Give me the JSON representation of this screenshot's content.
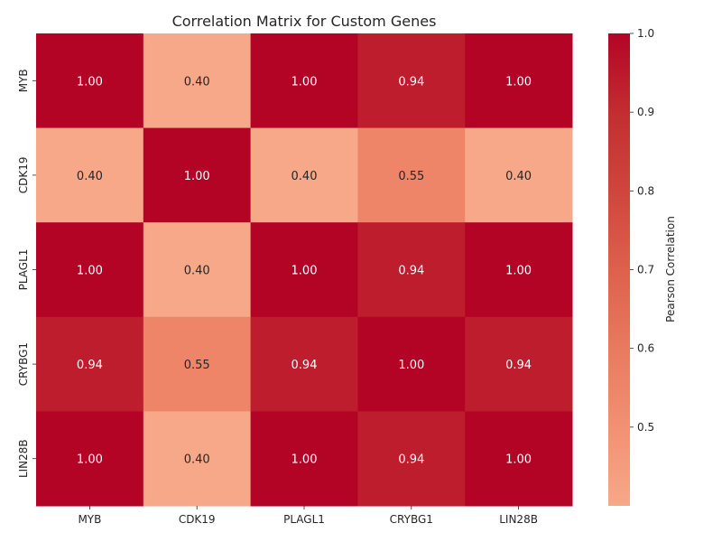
{
  "chart_data": {
    "type": "heatmap",
    "title": "Correlation Matrix for Custom Genes",
    "x_categories": [
      "MYB",
      "CDK19",
      "PLAGL1",
      "CRYBG1",
      "LIN28B"
    ],
    "y_categories": [
      "MYB",
      "CDK19",
      "PLAGL1",
      "CRYBG1",
      "LIN28B"
    ],
    "values": [
      [
        1.0,
        0.4,
        1.0,
        0.94,
        1.0
      ],
      [
        0.4,
        1.0,
        0.4,
        0.55,
        0.4
      ],
      [
        1.0,
        0.4,
        1.0,
        0.94,
        1.0
      ],
      [
        0.94,
        0.55,
        0.94,
        1.0,
        0.94
      ],
      [
        1.0,
        0.4,
        1.0,
        0.94,
        1.0
      ]
    ],
    "value_format": "0.00",
    "colorbar": {
      "label": "Pearson Correlation",
      "range": [
        0.4,
        1.0
      ],
      "ticks": [
        "0.5",
        "0.6",
        "0.7",
        "0.8",
        "0.9",
        "1.0"
      ],
      "colormap": "coolwarm (upper half)",
      "color_low": "#f6a889",
      "color_high": "#b40426"
    }
  }
}
